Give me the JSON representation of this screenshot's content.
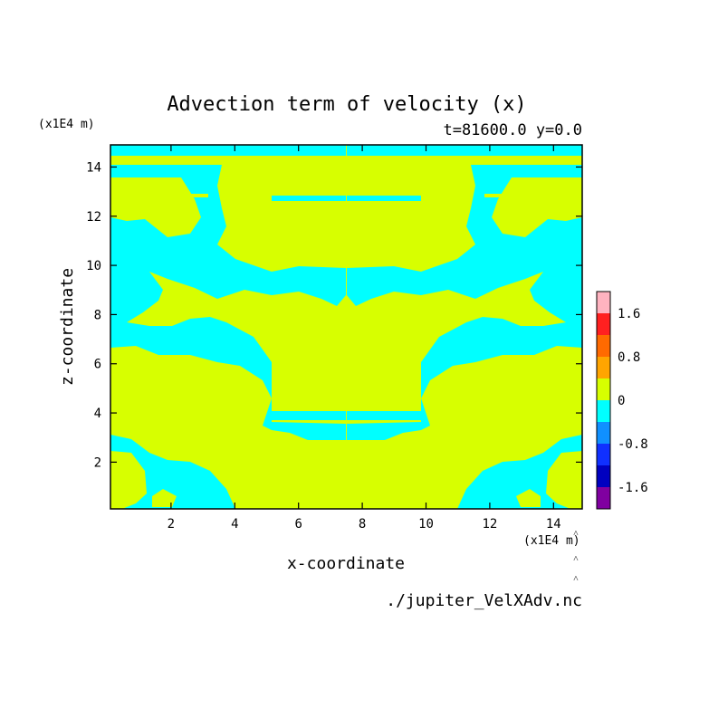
{
  "chart_data": {
    "type": "heatmap",
    "title": "Advection term of velocity (x)",
    "subtitle": "t=81600.0 y=0.0",
    "xlabel": "x-coordinate",
    "ylabel": "z-coordinate",
    "x_unit": "(x1E4 m)",
    "y_unit": "(x1E4 m)",
    "xlim": [
      0.1,
      14.9
    ],
    "ylim": [
      0.1,
      14.9
    ],
    "x_ticks": [
      "2",
      "4",
      "6",
      "8",
      "10",
      "12",
      "14"
    ],
    "y_ticks": [
      "2",
      "4",
      "6",
      "8",
      "10",
      "12",
      "14"
    ],
    "source": "./jupiter_VelXAdv.nc",
    "colorbar": {
      "labels": [
        "1.6",
        "0.8",
        "0",
        "-0.8",
        "-1.6"
      ],
      "colors": [
        "#ffb3c0",
        "#ff2020",
        "#ff6a00",
        "#ffa500",
        "#d7ff00",
        "#00ffff",
        "#1090ff",
        "#1030ff",
        "#0000c0",
        "#8000a0"
      ]
    },
    "field_colors": {
      "positive": "#d7ff00",
      "negative": "#00ffff"
    },
    "field_samples_description_free": [
      {
        "x": 1,
        "z": 14.5,
        "sign": "positive"
      },
      {
        "x": 7,
        "z": 10,
        "sign": "positive"
      },
      {
        "x": 8,
        "z": 10,
        "sign": "negative"
      },
      {
        "x": 1.5,
        "z": 10,
        "sign": "negative"
      },
      {
        "x": 14,
        "z": 10,
        "sign": "positive"
      }
    ]
  }
}
